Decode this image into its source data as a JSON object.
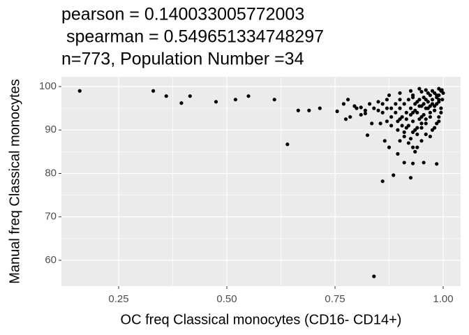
{
  "chart_data": {
    "type": "scatter",
    "title": [
      "pearson = 0.140033005772003",
      " spearman = 0.549651334748297",
      "n=773, Population Number =34"
    ],
    "x_label": "OC freq Classical monocytes (CD16- CD14+)",
    "y_label": "Manual freq Classical monocytes",
    "color": "#000000",
    "grid": true,
    "xlim": [
      0.1177,
      1.0403
    ],
    "ylim": [
      54.05,
      102.25
    ],
    "xticks": [
      0.25,
      {
        "value": 0.5,
        "label": "0.50"
      },
      0.75,
      {
        "value": 1,
        "label": "1.00"
      }
    ],
    "yticks": [
      60,
      70,
      80,
      90,
      100
    ],
    "x": [
      0.16,
      0.33,
      0.36,
      0.395,
      0.415,
      0.475,
      0.52,
      0.55,
      0.61,
      0.64,
      0.665,
      0.69,
      0.715,
      0.755,
      0.77,
      0.78,
      0.775,
      0.785,
      0.795,
      0.81,
      0.82,
      0.825,
      0.835,
      0.84,
      0.86,
      0.865,
      0.875,
      0.885,
      0.895,
      0.91,
      0.925,
      0.93,
      0.955,
      0.985,
      0.9,
      0.93,
      0.935,
      0.99,
      0.995,
      0.98,
      0.97,
      0.985,
      0.96,
      0.99,
      0.975,
      0.95,
      0.965,
      0.98,
      0.94,
      0.955,
      0.97,
      0.945,
      0.93,
      0.96,
      0.92,
      0.95,
      0.935,
      0.91,
      0.94,
      0.925,
      0.9,
      0.91,
      0.92,
      0.93,
      0.94,
      0.89,
      0.88,
      0.87,
      0.86,
      0.85,
      0.87,
      0.88,
      0.9,
      0.895,
      0.96,
      0.975,
      0.985,
      0.99,
      0.995,
      0.998,
      1.0,
      0.997,
      0.975,
      0.965,
      0.955,
      0.945,
      0.935,
      0.925,
      0.915,
      0.905,
      0.895,
      0.905,
      0.915,
      0.925,
      0.935,
      0.945,
      0.955,
      0.965,
      0.975,
      0.985,
      0.99,
      0.98,
      0.97,
      0.96,
      0.95,
      0.94,
      0.93,
      0.9,
      0.89,
      0.88,
      0.87,
      0.86,
      0.85,
      0.84,
      0.83,
      0.82,
      0.81,
      0.8,
      0.875,
      0.9,
      0.925,
      0.96,
      0.95,
      0.985,
      0.995,
      0.99,
      0.98,
      0.97,
      0.95,
      0.94,
      0.92,
      0.91,
      0.96,
      0.97,
      0.99,
      0.95,
      0.93,
      0.915,
      0.945,
      0.93,
      0.855
    ],
    "values": [
      99,
      99,
      97.8,
      96.2,
      97.8,
      96.5,
      97,
      97.8,
      97,
      86.7,
      94.5,
      94.5,
      95,
      94.3,
      96,
      97,
      92.5,
      93,
      95.5,
      95.2,
      93.8,
      88.8,
      91.5,
      56.3,
      78.2,
      87.5,
      86,
      79.6,
      84.5,
      82.5,
      79,
      82.3,
      82.5,
      82.2,
      87.5,
      86,
      85,
      99.5,
      99,
      98.5,
      98,
      97.5,
      97,
      96.5,
      96,
      95.5,
      95,
      94.5,
      94,
      93.5,
      93,
      92.5,
      92,
      91.5,
      91,
      90.5,
      90,
      89.5,
      89,
      88,
      95,
      96,
      97,
      98,
      96.5,
      94,
      93,
      95,
      96,
      94.5,
      92,
      91,
      92.5,
      90,
      89,
      90,
      91.5,
      93,
      95,
      97,
      98.5,
      99.2,
      99,
      98.5,
      97.5,
      97,
      96,
      95,
      94,
      93,
      92,
      91,
      92.5,
      93.5,
      94.5,
      95.5,
      96,
      96.5,
      97,
      98,
      98,
      95.5,
      94,
      92.5,
      91.5,
      90.5,
      89.5,
      97,
      96,
      95,
      97,
      94,
      96.5,
      95,
      96,
      94.5,
      93.5,
      95,
      98,
      98.5,
      99,
      99.2,
      98.8,
      96,
      94,
      92,
      90.5,
      88.5,
      87.5,
      86,
      87,
      88.5,
      95,
      95.5,
      97,
      93,
      94,
      90.5,
      99.5,
      97.5,
      91.5
    ]
  }
}
